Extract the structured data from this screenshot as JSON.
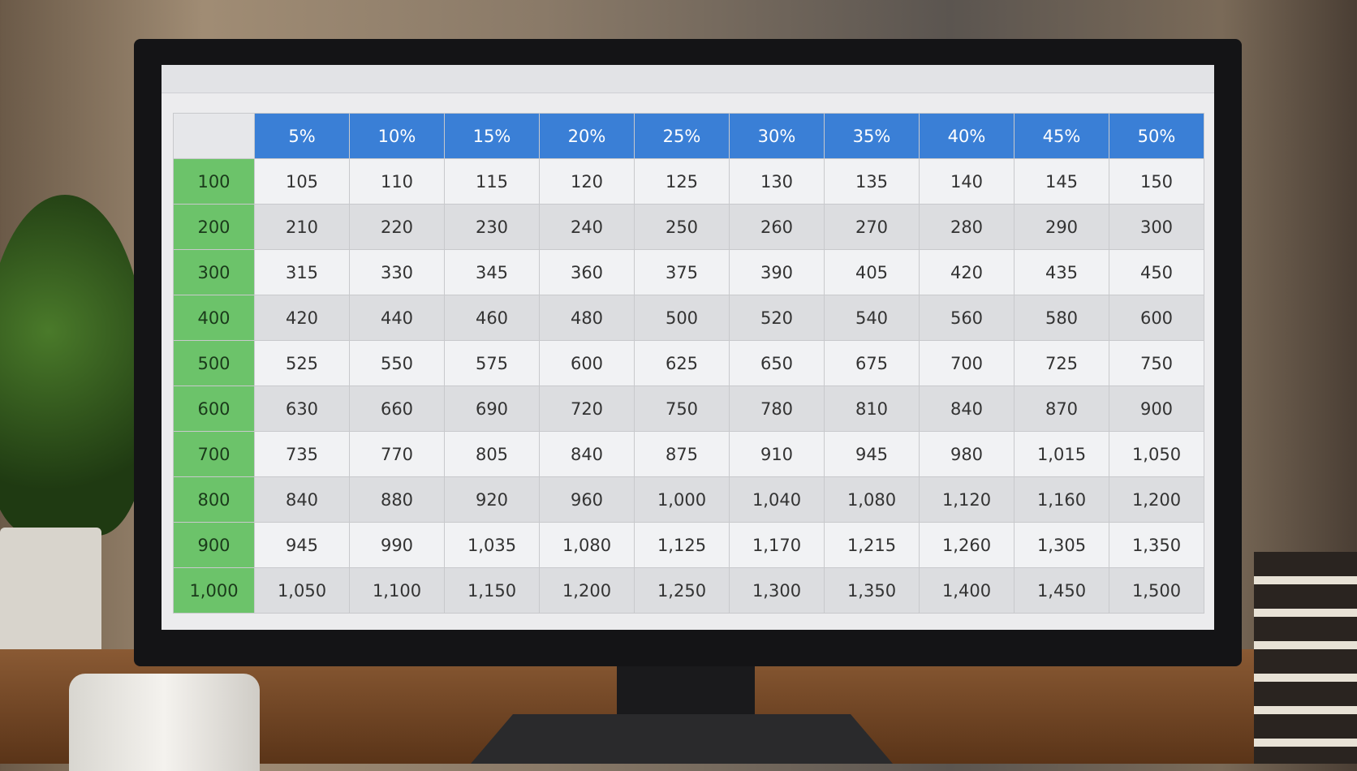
{
  "table": {
    "columns": [
      "5%",
      "10%",
      "15%",
      "20%",
      "25%",
      "30%",
      "35%",
      "40%",
      "45%",
      "50%"
    ],
    "rows": [
      {
        "header": "100",
        "cells": [
          "105",
          "110",
          "115",
          "120",
          "125",
          "130",
          "135",
          "140",
          "145",
          "150"
        ]
      },
      {
        "header": "200",
        "cells": [
          "210",
          "220",
          "230",
          "240",
          "250",
          "260",
          "270",
          "280",
          "290",
          "300"
        ]
      },
      {
        "header": "300",
        "cells": [
          "315",
          "330",
          "345",
          "360",
          "375",
          "390",
          "405",
          "420",
          "435",
          "450"
        ]
      },
      {
        "header": "400",
        "cells": [
          "420",
          "440",
          "460",
          "480",
          "500",
          "520",
          "540",
          "560",
          "580",
          "600"
        ]
      },
      {
        "header": "500",
        "cells": [
          "525",
          "550",
          "575",
          "600",
          "625",
          "650",
          "675",
          "700",
          "725",
          "750"
        ]
      },
      {
        "header": "600",
        "cells": [
          "630",
          "660",
          "690",
          "720",
          "750",
          "780",
          "810",
          "840",
          "870",
          "900"
        ]
      },
      {
        "header": "700",
        "cells": [
          "735",
          "770",
          "805",
          "840",
          "875",
          "910",
          "945",
          "980",
          "1,015",
          "1,050"
        ]
      },
      {
        "header": "800",
        "cells": [
          "840",
          "880",
          "920",
          "960",
          "1,000",
          "1,040",
          "1,080",
          "1,120",
          "1,160",
          "1,200"
        ]
      },
      {
        "header": "900",
        "cells": [
          "945",
          "990",
          "1,035",
          "1,080",
          "1,125",
          "1,170",
          "1,215",
          "1,260",
          "1,305",
          "1,350"
        ]
      },
      {
        "header": "1,000",
        "cells": [
          "1,050",
          "1,100",
          "1,150",
          "1,200",
          "1,250",
          "1,300",
          "1,350",
          "1,400",
          "1,450",
          "1,500"
        ]
      }
    ]
  }
}
